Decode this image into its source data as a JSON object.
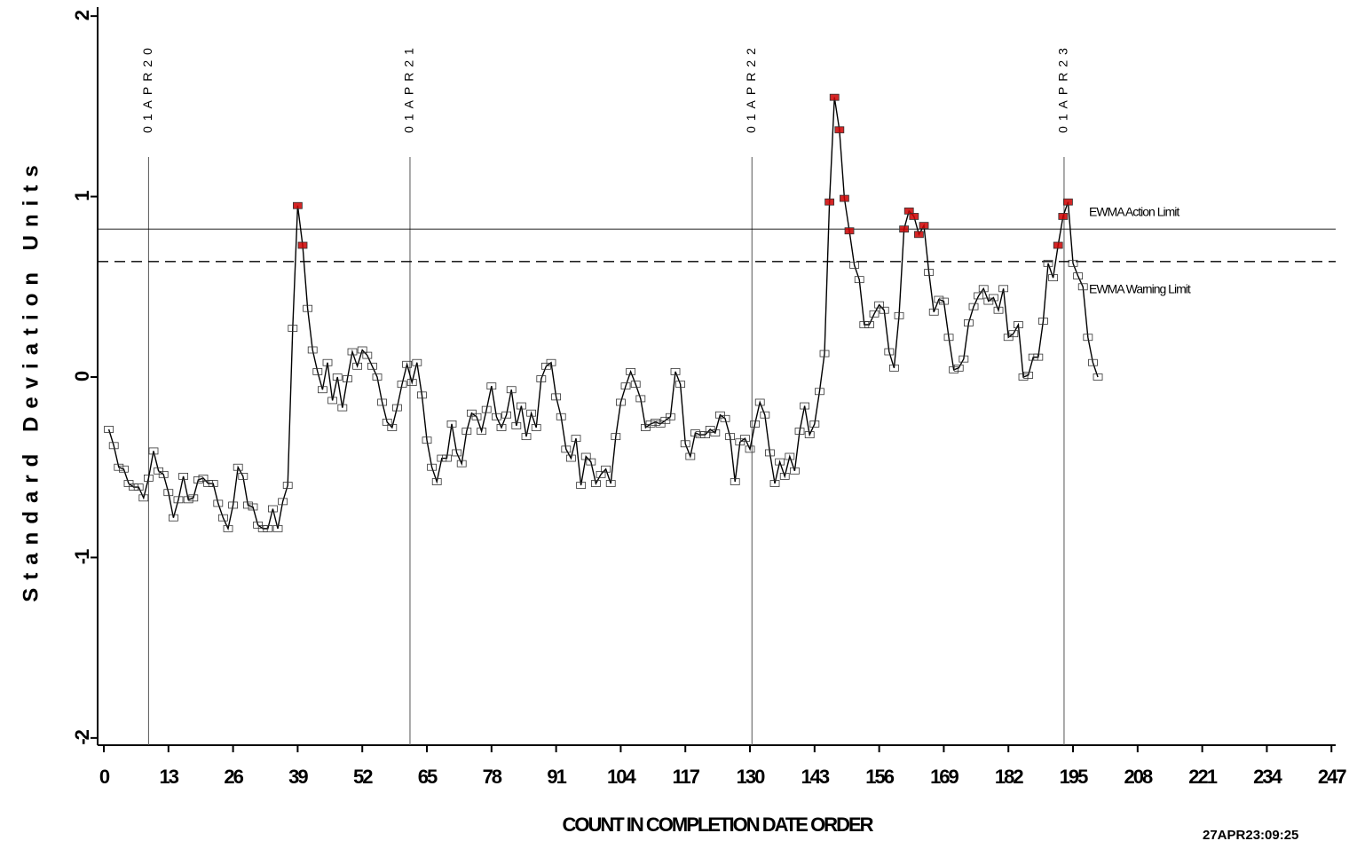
{
  "chart_data": {
    "type": "ewma",
    "y_label": "Standard Deviation Units",
    "x_label": "COUNT IN COMPLETION DATE ORDER",
    "footnote": "27APR23:09:25",
    "color": "#000000",
    "signal_color": "#cc0000",
    "x": [
      1,
      2,
      3,
      4,
      5,
      6,
      7,
      8,
      9,
      10,
      11,
      12,
      13,
      14,
      15,
      16,
      17,
      18,
      19,
      20,
      21,
      22,
      23,
      24,
      25,
      26,
      27,
      28,
      29,
      30,
      31,
      32,
      33,
      34,
      35,
      36,
      37,
      38,
      39,
      40,
      41,
      42,
      43,
      44,
      45,
      46,
      47,
      48,
      49,
      50,
      51,
      52,
      53,
      54,
      55,
      56,
      57,
      58,
      59,
      60,
      61,
      62,
      63,
      64,
      65,
      66,
      67,
      68,
      69,
      70,
      71,
      72,
      73,
      74,
      75,
      76,
      77,
      78,
      79,
      80,
      81,
      82,
      83,
      84,
      85,
      86,
      87,
      88,
      89,
      90,
      91,
      92,
      93,
      94,
      95,
      96,
      97,
      98,
      99,
      100,
      101,
      102,
      103,
      104,
      105,
      106,
      107,
      108,
      109,
      110,
      111,
      112,
      113,
      114,
      115,
      116,
      117,
      118,
      119,
      120,
      121,
      122,
      123,
      124,
      125,
      126,
      127,
      128,
      129,
      130,
      131,
      132,
      133,
      134,
      135,
      136,
      137,
      138,
      139,
      140,
      141,
      142,
      143,
      144,
      145,
      146,
      147,
      148,
      149,
      150,
      151,
      152,
      153,
      154,
      155,
      156,
      157,
      158,
      159,
      160,
      161,
      162,
      163,
      164,
      165,
      166,
      167,
      168,
      169,
      170,
      171,
      172,
      173,
      174,
      175,
      176,
      177,
      178,
      179,
      180,
      181,
      182,
      183,
      184,
      185,
      186,
      187,
      188,
      189,
      190,
      191,
      192,
      193,
      194,
      195,
      196,
      197,
      198,
      199,
      200
    ],
    "values": [
      -0.29,
      -0.38,
      -0.5,
      -0.51,
      -0.59,
      -0.61,
      -0.61,
      -0.67,
      -0.56,
      -0.41,
      -0.52,
      -0.54,
      -0.64,
      -0.78,
      -0.68,
      -0.55,
      -0.68,
      -0.67,
      -0.57,
      -0.56,
      -0.59,
      -0.59,
      -0.7,
      -0.78,
      -0.84,
      -0.71,
      -0.5,
      -0.55,
      -0.71,
      -0.72,
      -0.82,
      -0.84,
      -0.84,
      -0.73,
      -0.84,
      -0.69,
      -0.6,
      0.27,
      0.95,
      0.73,
      0.38,
      0.15,
      0.03,
      -0.07,
      0.08,
      -0.13,
      0,
      -0.17,
      -0.01,
      0.14,
      0.06,
      0.15,
      0.12,
      0.06,
      0,
      -0.14,
      -0.25,
      -0.28,
      -0.17,
      -0.04,
      0.07,
      -0.03,
      0.08,
      -0.1,
      -0.35,
      -0.5,
      -0.58,
      -0.45,
      -0.45,
      -0.26,
      -0.42,
      -0.48,
      -0.3,
      -0.2,
      -0.22,
      -0.3,
      -0.18,
      -0.05,
      -0.22,
      -0.28,
      -0.21,
      -0.07,
      -0.27,
      -0.16,
      -0.33,
      -0.2,
      -0.28,
      -0.01,
      0.06,
      0.08,
      -0.11,
      -0.22,
      -0.4,
      -0.45,
      -0.34,
      -0.6,
      -0.44,
      -0.47,
      -0.59,
      -0.54,
      -0.51,
      -0.59,
      -0.33,
      -0.14,
      -0.05,
      0.03,
      -0.04,
      -0.12,
      -0.28,
      -0.26,
      -0.25,
      -0.26,
      -0.24,
      -0.22,
      0.03,
      -0.04,
      -0.37,
      -0.44,
      -0.31,
      -0.32,
      -0.32,
      -0.29,
      -0.31,
      -0.21,
      -0.23,
      -0.33,
      -0.58,
      -0.36,
      -0.34,
      -0.4,
      -0.26,
      -0.14,
      -0.21,
      -0.42,
      -0.59,
      -0.47,
      -0.55,
      -0.44,
      -0.52,
      -0.3,
      -0.16,
      -0.32,
      -0.26,
      -0.08,
      0.13,
      0.97,
      1.55,
      1.37,
      0.99,
      0.81,
      0.62,
      0.54,
      0.29,
      0.29,
      0.35,
      0.4,
      0.37,
      0.14,
      0.05,
      0.34,
      0.82,
      0.92,
      0.89,
      0.79,
      0.84,
      0.58,
      0.36,
      0.43,
      0.42,
      0.22,
      0.04,
      0.05,
      0.1,
      0.3,
      0.39,
      0.45,
      0.49,
      0.42,
      0.44,
      0.37,
      0.49,
      0.22,
      0.24,
      0.29,
      0,
      0.01,
      0.11,
      0.11,
      0.31,
      0.63,
      0.55,
      0.73,
      0.89,
      0.97,
      0.63,
      0.56,
      0.5,
      0.22,
      0.08,
      0
    ],
    "xlim": [
      -1.25,
      247.85
    ],
    "ylim": [
      -2.04,
      2.04
    ],
    "xticks": [
      0,
      13,
      26,
      39,
      52,
      65,
      78,
      91,
      104,
      117,
      130,
      143,
      156,
      169,
      182,
      195,
      208,
      221,
      234,
      247
    ],
    "yticks": [
      -2,
      -1,
      0,
      1,
      2
    ],
    "reference_lines": [
      {
        "name": "EWMA Action Limit",
        "value": 0.82,
        "style": "solid"
      },
      {
        "name": "EWMA Warning Limit",
        "value": 0.64,
        "style": "dashed"
      }
    ],
    "x_reference_lines": [
      {
        "label": "01APR20",
        "value": 9
      },
      {
        "label": "01APR21",
        "value": 61.6
      },
      {
        "label": "01APR22",
        "value": 130.4
      },
      {
        "label": "01APR23",
        "value": 193.2
      }
    ]
  }
}
